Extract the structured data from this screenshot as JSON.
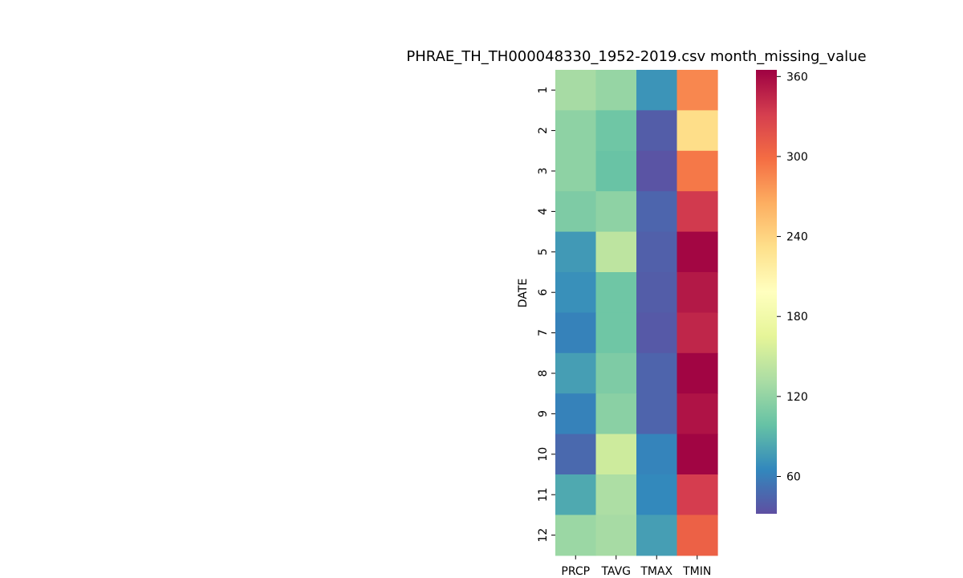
{
  "chart_data": {
    "type": "heatmap",
    "title": "PHRAE_TH_TH000048330_1952-2019.csv month_missing_value",
    "xlabel": "",
    "ylabel": "DATE",
    "x_categories": [
      "PRCP",
      "TAVG",
      "TMAX",
      "TMIN"
    ],
    "y_categories": [
      "1",
      "2",
      "3",
      "4",
      "5",
      "6",
      "7",
      "8",
      "9",
      "10",
      "11",
      "12"
    ],
    "values": [
      [
        130,
        122,
        72,
        285
      ],
      [
        118,
        103,
        40,
        233
      ],
      [
        118,
        100,
        35,
        293
      ],
      [
        110,
        118,
        45,
        334
      ],
      [
        75,
        142,
        42,
        362
      ],
      [
        70,
        103,
        40,
        352
      ],
      [
        62,
        103,
        38,
        345
      ],
      [
        78,
        110,
        44,
        363
      ],
      [
        62,
        116,
        44,
        355
      ],
      [
        47,
        151,
        63,
        363
      ],
      [
        84,
        133,
        66,
        332
      ],
      [
        124,
        130,
        78,
        307
      ]
    ],
    "colorbar": {
      "cmap": "Spectral_r",
      "vmin": 32,
      "vmax": 365,
      "ticks": [
        60,
        120,
        180,
        240,
        300,
        360
      ]
    }
  }
}
